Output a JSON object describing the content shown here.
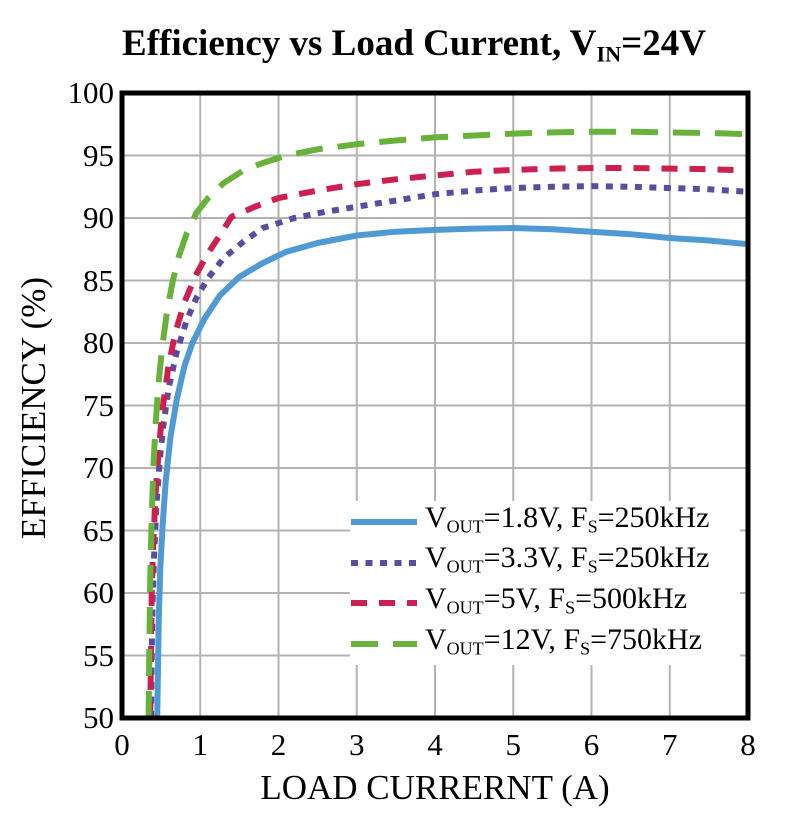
{
  "title": {
    "pre": "Efficiency vs Load Current, V",
    "sub": "IN",
    "post": "=24V"
  },
  "axes": {
    "x_label": "LOAD CURRERNT (A)",
    "y_label": "EFFICIENCY (%)",
    "x_ticks": [
      0,
      1,
      2,
      3,
      4,
      5,
      6,
      7,
      8
    ],
    "y_ticks": [
      50,
      55,
      60,
      65,
      70,
      75,
      80,
      85,
      90,
      95,
      100
    ]
  },
  "colors": {
    "frame": "#000000",
    "grid": "#b3b3b3",
    "background": "#ffffff",
    "blue": "#4f9ad2",
    "purple": "#5a4da0",
    "red": "#cc2150",
    "green": "#68b23c"
  },
  "legend": {
    "items": [
      {
        "v": "V",
        "v_sub": "OUT",
        "mid": "=1.8V, F",
        "f_sub": "S",
        "tail": "=250kHz"
      },
      {
        "v": "V",
        "v_sub": "OUT",
        "mid": "=3.3V, F",
        "f_sub": "S",
        "tail": "=250kHz"
      },
      {
        "v": "V",
        "v_sub": "OUT",
        "mid": "=5V, F",
        "f_sub": "S",
        "tail": "=500kHz"
      },
      {
        "v": "V",
        "v_sub": "OUT",
        "mid": "=12V, F",
        "f_sub": "S",
        "tail": "=750kHz"
      }
    ]
  },
  "chart_data": {
    "type": "line",
    "title": "Efficiency vs Load Current, V_IN=24V",
    "xlabel": "LOAD CURRERNT (A)",
    "ylabel": "EFFICIENCY (%)",
    "xlim": [
      0,
      8
    ],
    "ylim": [
      50,
      100
    ],
    "grid": true,
    "legend_position": "lower right",
    "series": [
      {
        "name": "V_OUT=1.8V, F_S=250kHz",
        "color": "#4f9ad2",
        "style": "solid",
        "dash": "",
        "points": [
          [
            0.45,
            50
          ],
          [
            0.46,
            54
          ],
          [
            0.47,
            58
          ],
          [
            0.49,
            62
          ],
          [
            0.52,
            65.5
          ],
          [
            0.56,
            69
          ],
          [
            0.62,
            72.5
          ],
          [
            0.7,
            75.5
          ],
          [
            0.8,
            78.2
          ],
          [
            0.9,
            80
          ],
          [
            1.05,
            81.9
          ],
          [
            1.25,
            83.8
          ],
          [
            1.5,
            85.3
          ],
          [
            1.8,
            86.4
          ],
          [
            2.1,
            87.3
          ],
          [
            2.5,
            88.0
          ],
          [
            3.0,
            88.6
          ],
          [
            3.5,
            88.9
          ],
          [
            4.0,
            89.05
          ],
          [
            4.5,
            89.15
          ],
          [
            5.0,
            89.2
          ],
          [
            5.5,
            89.1
          ],
          [
            6.0,
            88.9
          ],
          [
            6.5,
            88.7
          ],
          [
            7.0,
            88.4
          ],
          [
            7.5,
            88.2
          ],
          [
            8.0,
            87.9
          ]
        ]
      },
      {
        "name": "V_OUT=3.3V, F_S=250kHz",
        "color": "#5a4da0",
        "style": "dotted",
        "dash": "7 7.5",
        "points": [
          [
            0.37,
            50
          ],
          [
            0.38,
            55
          ],
          [
            0.39,
            59
          ],
          [
            0.41,
            63
          ],
          [
            0.44,
            67
          ],
          [
            0.48,
            70.5
          ],
          [
            0.53,
            73.5
          ],
          [
            0.6,
            76.5
          ],
          [
            0.7,
            79.3
          ],
          [
            0.82,
            81.7
          ],
          [
            0.95,
            83.6
          ],
          [
            1.1,
            85.2
          ],
          [
            1.3,
            86.8
          ],
          [
            1.55,
            88.1
          ],
          [
            1.8,
            89.2
          ],
          [
            2.2,
            90.0
          ],
          [
            2.6,
            90.5
          ],
          [
            3.0,
            90.9
          ],
          [
            3.5,
            91.4
          ],
          [
            4.0,
            91.9
          ],
          [
            4.5,
            92.2
          ],
          [
            5.0,
            92.4
          ],
          [
            5.5,
            92.5
          ],
          [
            6.0,
            92.55
          ],
          [
            6.5,
            92.5
          ],
          [
            7.0,
            92.4
          ],
          [
            7.5,
            92.3
          ],
          [
            8.0,
            92.1
          ]
        ]
      },
      {
        "name": "V_OUT=5V, F_S=500kHz",
        "color": "#cc2150",
        "style": "dashed",
        "dash": "16 12",
        "points": [
          [
            0.36,
            50
          ],
          [
            0.37,
            55
          ],
          [
            0.38,
            60
          ],
          [
            0.4,
            64
          ],
          [
            0.43,
            68
          ],
          [
            0.47,
            71.5
          ],
          [
            0.52,
            74.8
          ],
          [
            0.59,
            78
          ],
          [
            0.68,
            80.8
          ],
          [
            0.8,
            83.3
          ],
          [
            0.95,
            85.5
          ],
          [
            1.1,
            87.2
          ],
          [
            1.25,
            88.6
          ],
          [
            1.4,
            90.1
          ],
          [
            1.7,
            90.9
          ],
          [
            2.0,
            91.6
          ],
          [
            2.5,
            92.2
          ],
          [
            3.0,
            92.7
          ],
          [
            3.5,
            93.1
          ],
          [
            4.0,
            93.4
          ],
          [
            4.5,
            93.7
          ],
          [
            5.0,
            93.85
          ],
          [
            5.5,
            93.95
          ],
          [
            6.0,
            94.0
          ],
          [
            6.5,
            94.0
          ],
          [
            7.0,
            93.95
          ],
          [
            7.5,
            93.9
          ],
          [
            8.0,
            93.8
          ]
        ]
      },
      {
        "name": "V_OUT=12V, F_S=750kHz",
        "color": "#68b23c",
        "style": "long-dashed",
        "dash": "27 15",
        "points": [
          [
            0.34,
            50
          ],
          [
            0.35,
            56
          ],
          [
            0.36,
            61
          ],
          [
            0.38,
            66
          ],
          [
            0.4,
            70
          ],
          [
            0.43,
            73.5
          ],
          [
            0.47,
            77
          ],
          [
            0.52,
            80
          ],
          [
            0.58,
            82.7
          ],
          [
            0.65,
            85
          ],
          [
            0.73,
            87
          ],
          [
            0.83,
            88.8
          ],
          [
            0.95,
            90.4
          ],
          [
            1.1,
            91.6
          ],
          [
            1.3,
            92.8
          ],
          [
            1.55,
            93.8
          ],
          [
            1.8,
            94.4
          ],
          [
            2.1,
            95.0
          ],
          [
            2.5,
            95.5
          ],
          [
            3.0,
            95.9
          ],
          [
            3.5,
            96.2
          ],
          [
            4.0,
            96.45
          ],
          [
            4.5,
            96.6
          ],
          [
            5.0,
            96.75
          ],
          [
            5.5,
            96.85
          ],
          [
            6.0,
            96.9
          ],
          [
            6.5,
            96.9
          ],
          [
            7.0,
            96.85
          ],
          [
            7.5,
            96.8
          ],
          [
            8.0,
            96.7
          ]
        ]
      }
    ]
  }
}
